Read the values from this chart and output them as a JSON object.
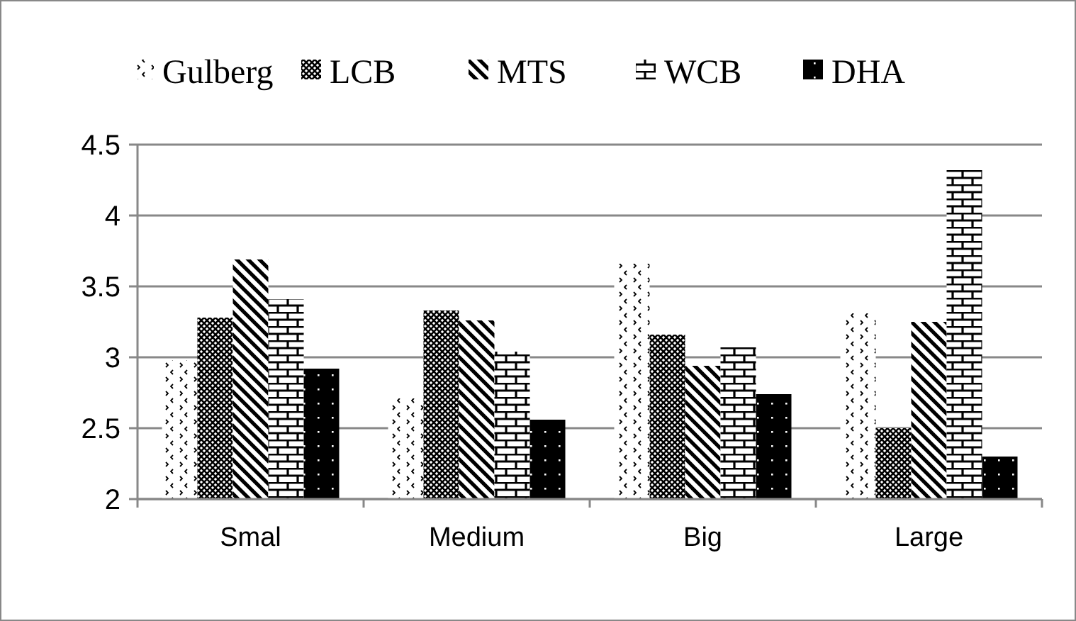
{
  "chart_data": {
    "type": "bar",
    "categories": [
      "Smal",
      "Medium",
      "Big",
      "Large"
    ],
    "series": [
      {
        "name": "Gulberg",
        "color": "#000000",
        "values": [
          2.98,
          2.71,
          3.66,
          3.31
        ]
      },
      {
        "name": "LCB",
        "color": "#000000",
        "values": [
          3.28,
          3.33,
          3.16,
          2.5
        ]
      },
      {
        "name": "MTS",
        "color": "#000000",
        "values": [
          3.69,
          3.26,
          2.94,
          3.25
        ]
      },
      {
        "name": "WCB",
        "color": "#000000",
        "values": [
          3.41,
          3.04,
          3.07,
          4.32
        ]
      },
      {
        "name": "DHA",
        "color": "#000000",
        "values": [
          2.92,
          2.56,
          2.74,
          2.3
        ]
      }
    ],
    "ylim": [
      2,
      4.5
    ],
    "yticks": [
      {
        "value": 2,
        "label": "2"
      },
      {
        "value": 2.5,
        "label": "2.5"
      },
      {
        "value": 3,
        "label": "3"
      },
      {
        "value": 3.5,
        "label": "3.5"
      },
      {
        "value": 4,
        "label": "4"
      },
      {
        "value": 4.5,
        "label": "4.5"
      }
    ],
    "grid": "y",
    "legend": "top"
  }
}
